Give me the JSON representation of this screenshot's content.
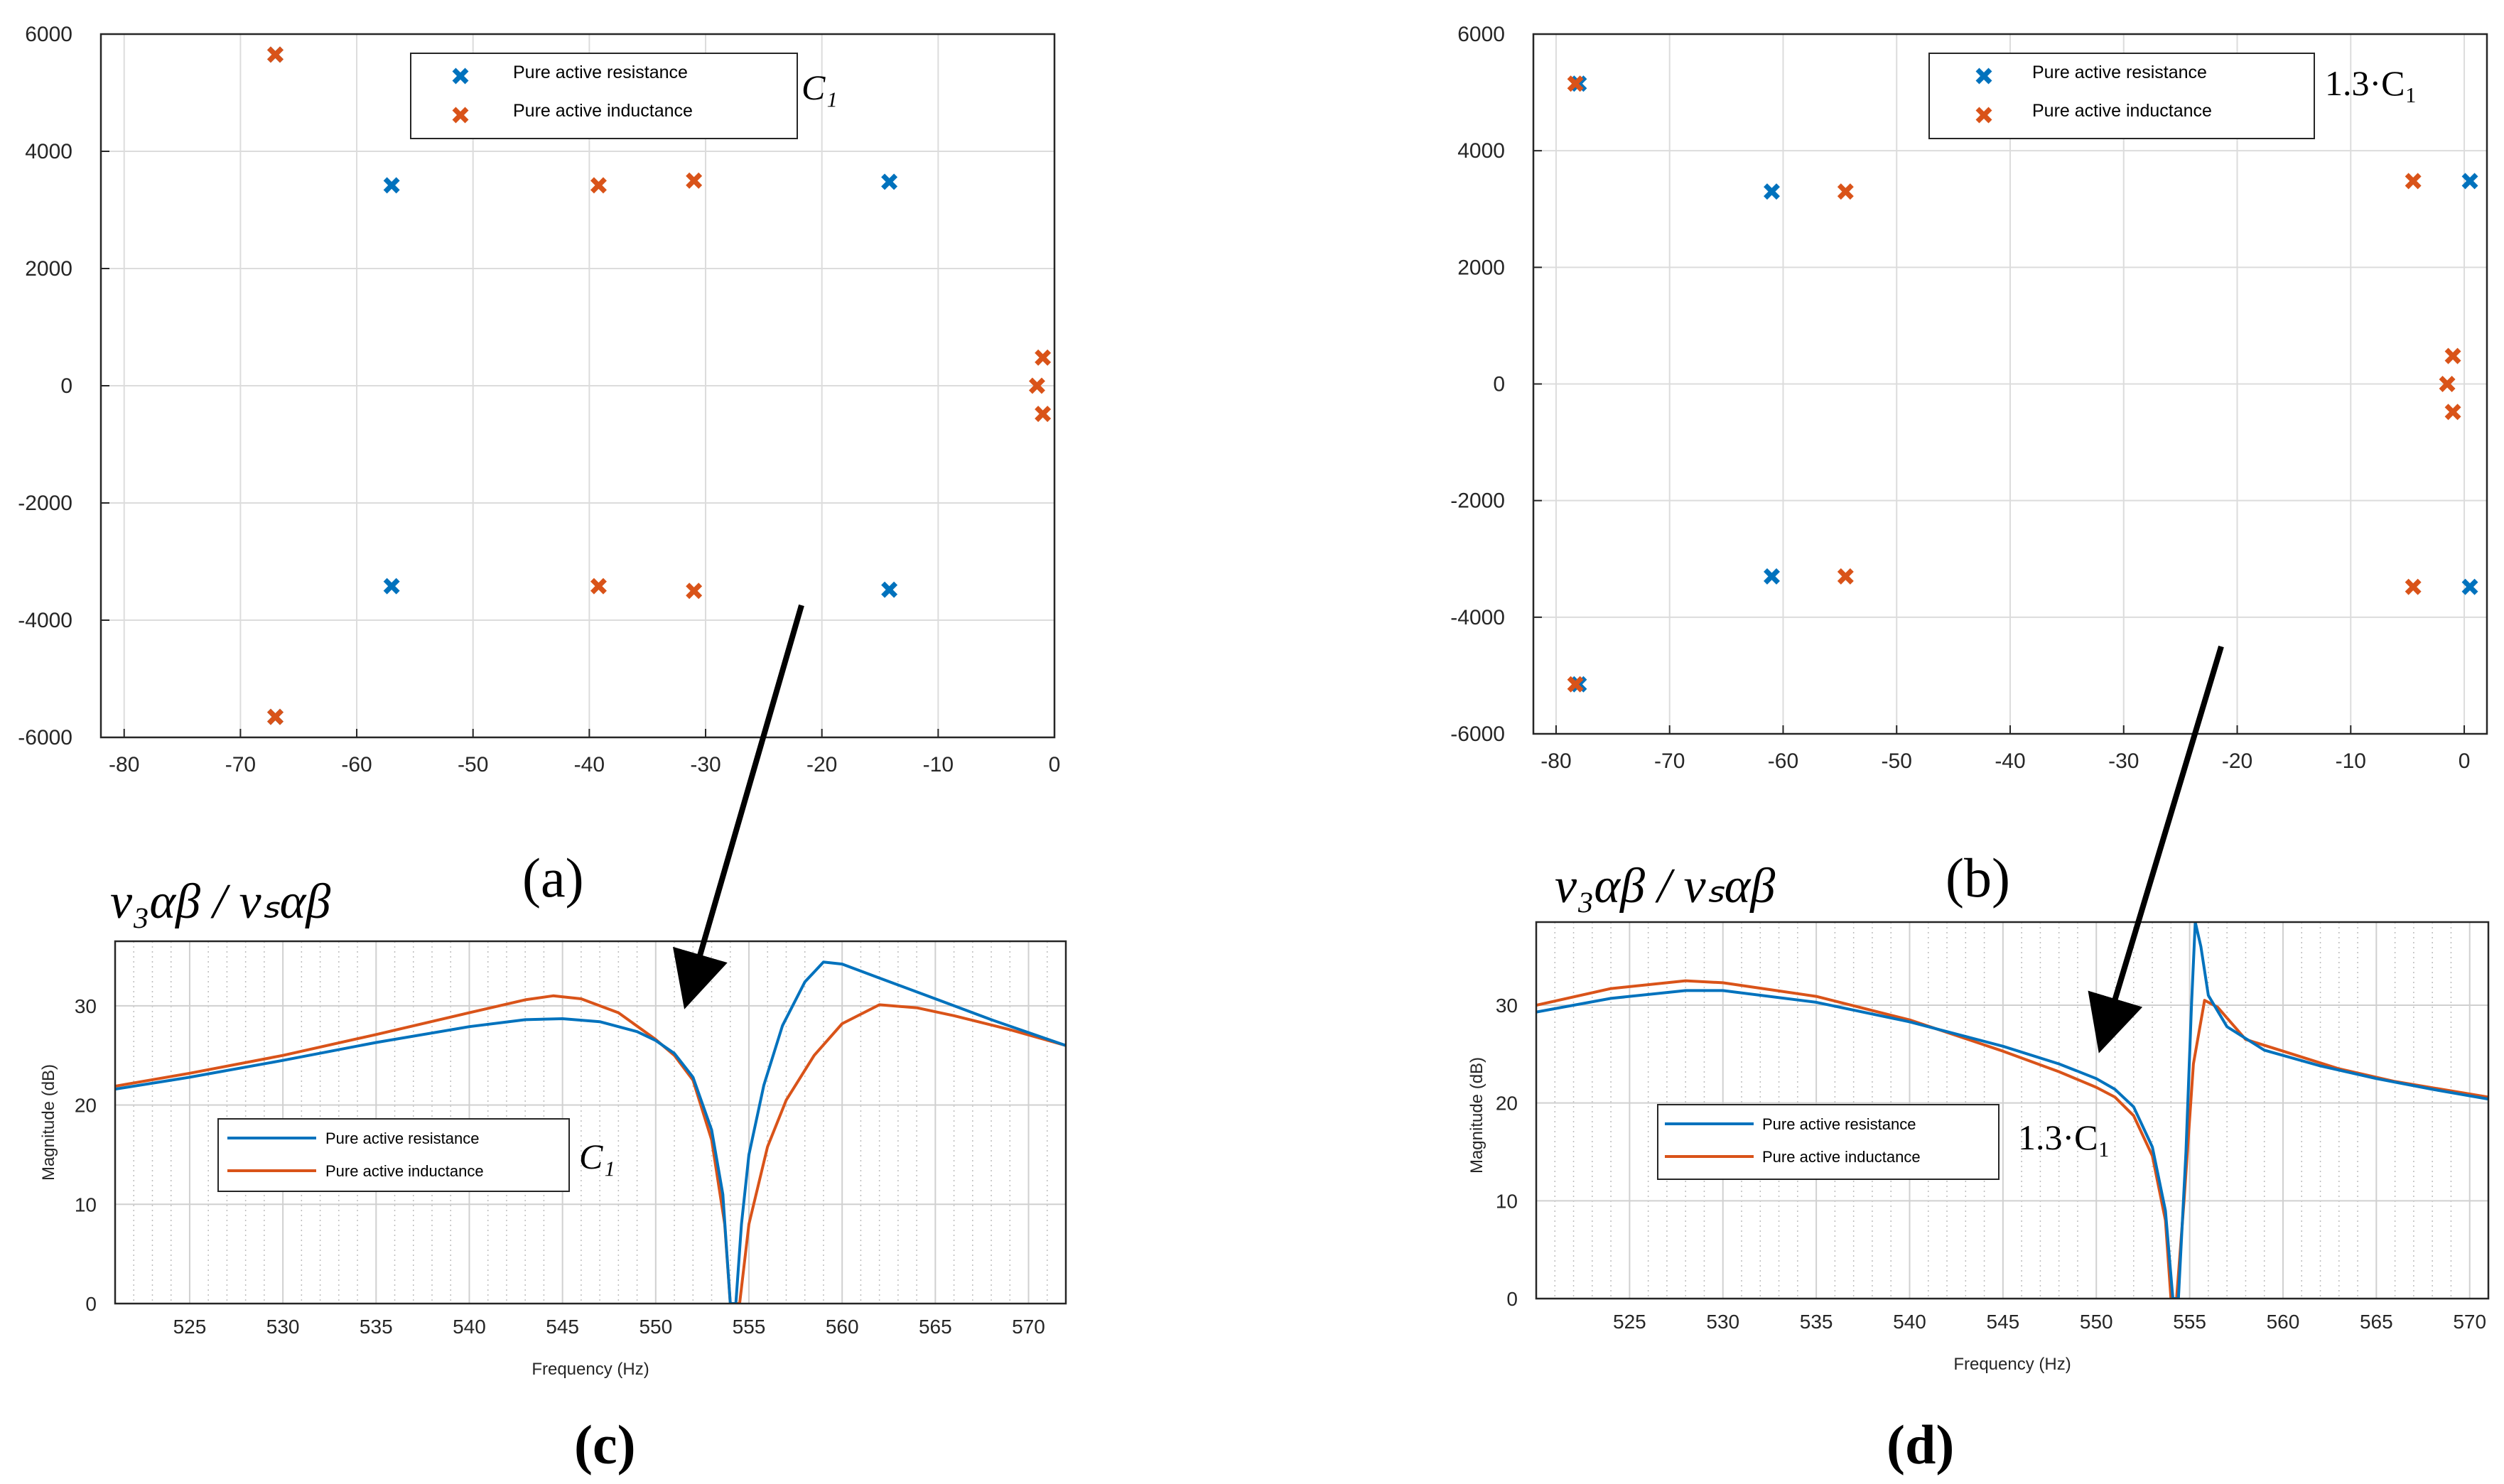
{
  "colors": {
    "resistance": "#0072BD",
    "inductance": "#D95319",
    "arrow": "#000000"
  },
  "legend": {
    "resistance": "Pure active resistance",
    "inductance": "Pure active inductance"
  },
  "chart_data": [
    {
      "id": "a",
      "type": "scatter",
      "panel_label": "(a)",
      "annotation": "C₁",
      "xlim": [
        -82,
        0
      ],
      "ylim": [
        -6000,
        6000
      ],
      "xticks": [
        -80,
        -70,
        -60,
        -50,
        -40,
        -30,
        -20,
        -10,
        0
      ],
      "yticks": [
        6000,
        4000,
        2000,
        0,
        -2000,
        -4000,
        -6000
      ],
      "legend_position": "top",
      "series": [
        {
          "name": "Pure active resistance",
          "color": "#0072BD",
          "points": [
            [
              -67,
              5650
            ],
            [
              -67,
              -5650
            ],
            [
              -57,
              3420
            ],
            [
              -57,
              -3420
            ],
            [
              -14.2,
              3480
            ],
            [
              -14.2,
              -3480
            ]
          ]
        },
        {
          "name": "Pure active inductance",
          "color": "#D95319",
          "points": [
            [
              -67,
              5650
            ],
            [
              -67,
              -5650
            ],
            [
              -39.2,
              3420
            ],
            [
              -39.2,
              -3420
            ],
            [
              -31,
              3500
            ],
            [
              -31,
              -3500
            ],
            [
              -1,
              480
            ],
            [
              -1.5,
              0
            ],
            [
              -1,
              -480
            ]
          ]
        }
      ]
    },
    {
      "id": "b",
      "type": "scatter",
      "panel_label": "(b)",
      "annotation": "1.3·C₁",
      "xlim": [
        -82,
        2
      ],
      "ylim": [
        -6000,
        6000
      ],
      "xticks": [
        -80,
        -70,
        -60,
        -50,
        -40,
        -30,
        -20,
        -10,
        0
      ],
      "yticks": [
        6000,
        4000,
        2000,
        0,
        -2000,
        -4000,
        -6000
      ],
      "legend_position": "top-right",
      "series": [
        {
          "name": "Pure active resistance",
          "color": "#0072BD",
          "points": [
            [
              -78,
              5150
            ],
            [
              -78,
              -5150
            ],
            [
              -61,
              3300
            ],
            [
              -61,
              -3300
            ],
            [
              0.5,
              3480
            ],
            [
              0.5,
              -3480
            ]
          ]
        },
        {
          "name": "Pure active inductance",
          "color": "#D95319",
          "points": [
            [
              -78.3,
              5150
            ],
            [
              -78.3,
              -5150
            ],
            [
              -54.5,
              3300
            ],
            [
              -54.5,
              -3300
            ],
            [
              -4.5,
              3480
            ],
            [
              -4.5,
              -3480
            ],
            [
              -1,
              480
            ],
            [
              -1.5,
              0
            ],
            [
              -1,
              -480
            ]
          ]
        }
      ]
    },
    {
      "id": "c",
      "type": "line",
      "panel_label": "(c)",
      "title": "v₃αβ / vₛαβ",
      "annotation": "C₁",
      "xlabel": "Frequency  (Hz)",
      "ylabel": "Magnitude (dB)",
      "xlim": [
        521,
        572
      ],
      "ylim": [
        0,
        36.5
      ],
      "xticks": [
        525,
        530,
        535,
        540,
        545,
        550,
        555,
        560,
        565,
        570
      ],
      "yticks": [
        30,
        20,
        10,
        0
      ],
      "legend_position": "bottom-left",
      "series": [
        {
          "name": "Pure active resistance",
          "color": "#0072BD",
          "points": [
            [
              521,
              21.6
            ],
            [
              525,
              22.8
            ],
            [
              530,
              24.5
            ],
            [
              535,
              26.3
            ],
            [
              540,
              27.9
            ],
            [
              543,
              28.6
            ],
            [
              545,
              28.7
            ],
            [
              547,
              28.4
            ],
            [
              549,
              27.4
            ],
            [
              550,
              26.5
            ],
            [
              551,
              25.2
            ],
            [
              552,
              22.8
            ],
            [
              553,
              17.5
            ],
            [
              553.6,
              11
            ],
            [
              554,
              0
            ],
            [
              554.3,
              0
            ],
            [
              554.6,
              8
            ],
            [
              555,
              15
            ],
            [
              555.8,
              22
            ],
            [
              556.8,
              28
            ],
            [
              558,
              32.4
            ],
            [
              559,
              34.4
            ],
            [
              560,
              34.2
            ],
            [
              562,
              32.8
            ],
            [
              565,
              30.7
            ],
            [
              568,
              28.6
            ],
            [
              572,
              26
            ]
          ]
        },
        {
          "name": "Pure active inductance",
          "color": "#D95319",
          "points": [
            [
              521,
              21.9
            ],
            [
              525,
              23.2
            ],
            [
              530,
              25
            ],
            [
              535,
              27.1
            ],
            [
              540,
              29.3
            ],
            [
              543,
              30.6
            ],
            [
              544.5,
              31
            ],
            [
              546,
              30.7
            ],
            [
              548,
              29.3
            ],
            [
              550,
              26.6
            ],
            [
              551,
              25
            ],
            [
              552,
              22.5
            ],
            [
              553,
              16.5
            ],
            [
              553.7,
              8
            ],
            [
              554,
              0
            ],
            [
              554.5,
              0
            ],
            [
              555,
              8
            ],
            [
              556,
              15.8
            ],
            [
              557,
              20.5
            ],
            [
              558.5,
              25
            ],
            [
              560,
              28.2
            ],
            [
              562,
              30.1
            ],
            [
              564,
              29.8
            ],
            [
              566,
              29
            ],
            [
              569,
              27.6
            ],
            [
              572,
              26
            ]
          ]
        }
      ]
    },
    {
      "id": "d",
      "type": "line",
      "panel_label": "(d)",
      "title": "v₃αβ / vₛαβ",
      "annotation": "1.3·C₁",
      "xlabel": "Frequency  (Hz)",
      "ylabel": "Magnitude (dB)",
      "xlim": [
        520,
        571
      ],
      "ylim": [
        0,
        38.5
      ],
      "xticks": [
        525,
        530,
        535,
        540,
        545,
        550,
        555,
        560,
        565,
        570
      ],
      "yticks": [
        30,
        20,
        10,
        0
      ],
      "legend_position": "bottom-left",
      "series": [
        {
          "name": "Pure active resistance",
          "color": "#0072BD",
          "points": [
            [
              520,
              29.3
            ],
            [
              524,
              30.7
            ],
            [
              528,
              31.5
            ],
            [
              530,
              31.5
            ],
            [
              535,
              30.3
            ],
            [
              540,
              28.3
            ],
            [
              545,
              25.8
            ],
            [
              548,
              24
            ],
            [
              550,
              22.5
            ],
            [
              551,
              21.4
            ],
            [
              552,
              19.6
            ],
            [
              553,
              15.5
            ],
            [
              553.7,
              9
            ],
            [
              554.1,
              0
            ],
            [
              554.4,
              0
            ],
            [
              554.8,
              15
            ],
            [
              555.1,
              30
            ],
            [
              555.3,
              38.5
            ],
            [
              555.6,
              36
            ],
            [
              556,
              31
            ],
            [
              557,
              27.8
            ],
            [
              559,
              25.4
            ],
            [
              562,
              23.8
            ],
            [
              565,
              22.5
            ],
            [
              568,
              21.4
            ],
            [
              571,
              20.4
            ]
          ]
        },
        {
          "name": "Pure active inductance",
          "color": "#D95319",
          "points": [
            [
              520,
              30
            ],
            [
              524,
              31.7
            ],
            [
              528,
              32.5
            ],
            [
              530,
              32.3
            ],
            [
              535,
              30.9
            ],
            [
              540,
              28.5
            ],
            [
              545,
              25.3
            ],
            [
              548,
              23.2
            ],
            [
              550,
              21.6
            ],
            [
              551,
              20.6
            ],
            [
              552,
              18.7
            ],
            [
              553,
              14.6
            ],
            [
              553.7,
              8
            ],
            [
              554,
              0
            ],
            [
              554.3,
              0
            ],
            [
              554.7,
              10
            ],
            [
              555.2,
              24
            ],
            [
              555.8,
              30.5
            ],
            [
              556.5,
              29.8
            ],
            [
              558,
              26.5
            ],
            [
              560,
              25.3
            ],
            [
              563,
              23.5
            ],
            [
              566,
              22.2
            ],
            [
              571,
              20.6
            ]
          ]
        }
      ]
    }
  ]
}
